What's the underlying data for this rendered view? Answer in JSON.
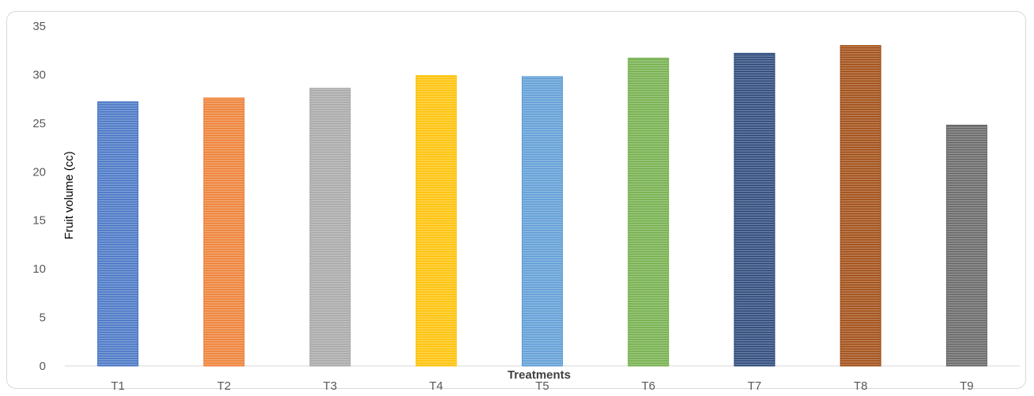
{
  "chart_data": {
    "type": "bar",
    "categories": [
      "T1",
      "T2",
      "T3",
      "T4",
      "T5",
      "T6",
      "T7",
      "T8",
      "T9"
    ],
    "values": [
      27.2,
      27.6,
      28.6,
      29.9,
      29.8,
      31.7,
      32.2,
      33.0,
      24.8
    ],
    "xlabel": "Treatments",
    "ylabel": "Fruit volume (cc)",
    "ylim": [
      0,
      35
    ],
    "yticks": [
      0,
      5,
      10,
      15,
      20,
      25,
      30,
      35
    ],
    "grid": false,
    "legend": "none",
    "bar_colors": [
      "#4472c4",
      "#ed7d31",
      "#a5a5a5",
      "#ffc000",
      "#5b9bd5",
      "#70ad47",
      "#264478",
      "#9e480e",
      "#636363"
    ]
  }
}
